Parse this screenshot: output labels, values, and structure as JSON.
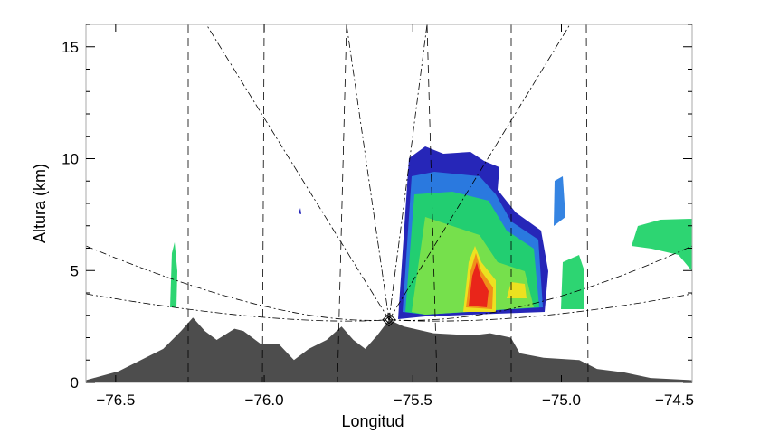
{
  "chart_data": {
    "type": "area",
    "xlabel": "Longitud",
    "ylabel": "Altura (km)",
    "xlim": [
      -76.6,
      -74.56
    ],
    "ylim": [
      0,
      16
    ],
    "x_ticks": [
      "−76.5",
      "−76.0",
      "−75.5",
      "−75.0",
      "−74.5"
    ],
    "x_tick_values": [
      -76.5,
      -76.0,
      -75.5,
      -75.0,
      -74.5
    ],
    "y_ticks": [
      "0",
      "5",
      "10",
      "15"
    ],
    "y_tick_values": [
      0,
      5,
      10,
      15
    ],
    "grid": false,
    "terrain_color": "#4d4d4d",
    "radar_site": {
      "lon": -75.58,
      "alt": 2.8
    },
    "terrain": [
      [
        -76.6,
        0.1
      ],
      [
        -76.49,
        0.5
      ],
      [
        -76.43,
        0.9
      ],
      [
        -76.34,
        1.5
      ],
      [
        -76.28,
        2.3
      ],
      [
        -76.24,
        2.9
      ],
      [
        -76.2,
        2.3
      ],
      [
        -76.16,
        1.9
      ],
      [
        -76.1,
        2.4
      ],
      [
        -76.07,
        2.3
      ],
      [
        -76.01,
        1.7
      ],
      [
        -75.95,
        1.7
      ],
      [
        -75.9,
        1.0
      ],
      [
        -75.85,
        1.5
      ],
      [
        -75.79,
        1.9
      ],
      [
        -75.74,
        2.5
      ],
      [
        -75.7,
        1.9
      ],
      [
        -75.66,
        1.5
      ],
      [
        -75.62,
        2.1
      ],
      [
        -75.58,
        2.8
      ],
      [
        -75.53,
        2.5
      ],
      [
        -75.43,
        2.2
      ],
      [
        -75.3,
        2.1
      ],
      [
        -75.24,
        2.2
      ],
      [
        -75.17,
        2.0
      ],
      [
        -75.14,
        1.3
      ],
      [
        -75.06,
        1.1
      ],
      [
        -74.94,
        1.0
      ],
      [
        -74.88,
        0.6
      ],
      [
        -74.79,
        0.45
      ],
      [
        -74.7,
        0.2
      ],
      [
        -74.56,
        0.1
      ]
    ],
    "reflectivity_colors": [
      "#1a1ab4",
      "#2a7de0",
      "#22d36a",
      "#7be04a",
      "#f2e01e",
      "#f08a1a",
      "#e8201a"
    ]
  }
}
